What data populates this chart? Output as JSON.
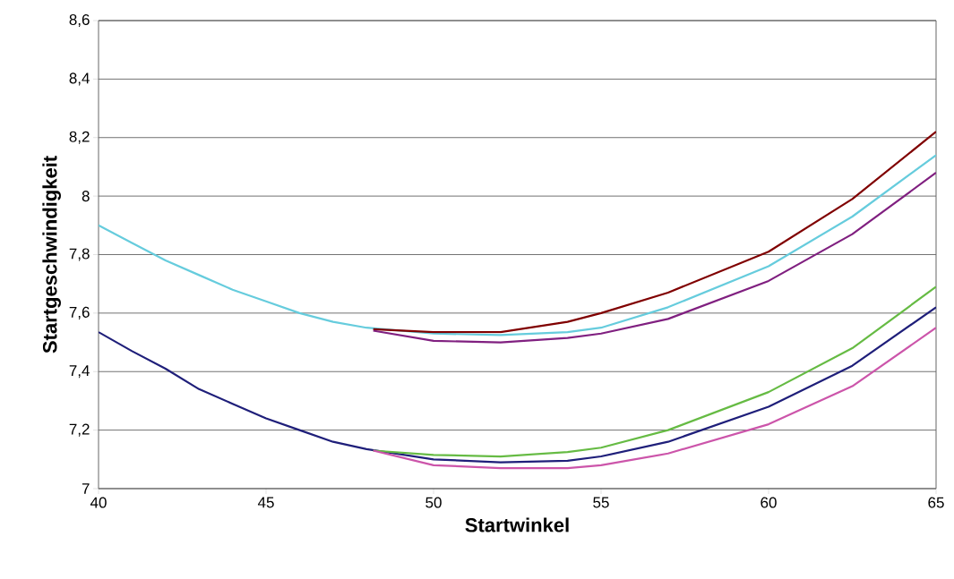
{
  "chart_data": {
    "type": "line",
    "xlabel": "Startwinkel",
    "ylabel": "Startgeschwindigkeit",
    "xlim": [
      40,
      65
    ],
    "xticks": [
      40,
      45,
      50,
      55,
      60,
      65
    ],
    "ylim": [
      7,
      8.6
    ],
    "yticks": [
      7,
      {
        "value": 7.2,
        "label": "7,2"
      },
      {
        "value": 7.4,
        "label": "7,4"
      },
      {
        "value": 7.6,
        "label": "7,6"
      },
      {
        "value": 7.8,
        "label": "7,8"
      },
      8,
      {
        "value": 8.2,
        "label": "8,2"
      },
      {
        "value": 8.4,
        "label": "8,4"
      },
      {
        "value": 8.6,
        "label": "8,6"
      }
    ],
    "grid": "y",
    "marker": "none",
    "line_style": "solid",
    "series": [
      {
        "color": "#66ccdd",
        "x": [
          40,
          41,
          42,
          43,
          44,
          45,
          46,
          47,
          48,
          50,
          52,
          54,
          55,
          57,
          60,
          62.5,
          65
        ],
        "values": [
          7.9,
          7.84,
          7.78,
          7.73,
          7.68,
          7.64,
          7.6,
          7.57,
          7.55,
          7.53,
          7.525,
          7.535,
          7.55,
          7.62,
          7.76,
          7.93,
          8.14
        ]
      },
      {
        "color": "#800000",
        "x": [
          48.2,
          50,
          52,
          54,
          55,
          57,
          60,
          62.5,
          65
        ],
        "values": [
          7.545,
          7.535,
          7.535,
          7.57,
          7.6,
          7.67,
          7.81,
          7.99,
          8.22
        ]
      },
      {
        "color": "#802080",
        "x": [
          48.2,
          50,
          52,
          54,
          55,
          57,
          60,
          62.5,
          65
        ],
        "values": [
          7.54,
          7.505,
          7.5,
          7.515,
          7.53,
          7.58,
          7.71,
          7.87,
          8.08
        ]
      },
      {
        "color": "#1f1f7a",
        "x": [
          40,
          41,
          42,
          43,
          44,
          45,
          46,
          47,
          48,
          50,
          52,
          54,
          55,
          57,
          60,
          62.5,
          65
        ],
        "values": [
          7.535,
          7.47,
          7.41,
          7.34,
          7.29,
          7.24,
          7.2,
          7.16,
          7.135,
          7.1,
          7.09,
          7.095,
          7.11,
          7.16,
          7.28,
          7.42,
          7.62
        ]
      },
      {
        "color": "#66bb44",
        "x": [
          48.2,
          50,
          52,
          54,
          55,
          57,
          60,
          62.5,
          65
        ],
        "values": [
          7.13,
          7.115,
          7.11,
          7.125,
          7.14,
          7.2,
          7.33,
          7.48,
          7.69
        ]
      },
      {
        "color": "#cc55aa",
        "x": [
          48.2,
          50,
          52,
          54,
          55,
          57,
          60,
          62.5,
          65
        ],
        "values": [
          7.13,
          7.08,
          7.07,
          7.07,
          7.08,
          7.12,
          7.22,
          7.35,
          7.55
        ]
      }
    ]
  }
}
